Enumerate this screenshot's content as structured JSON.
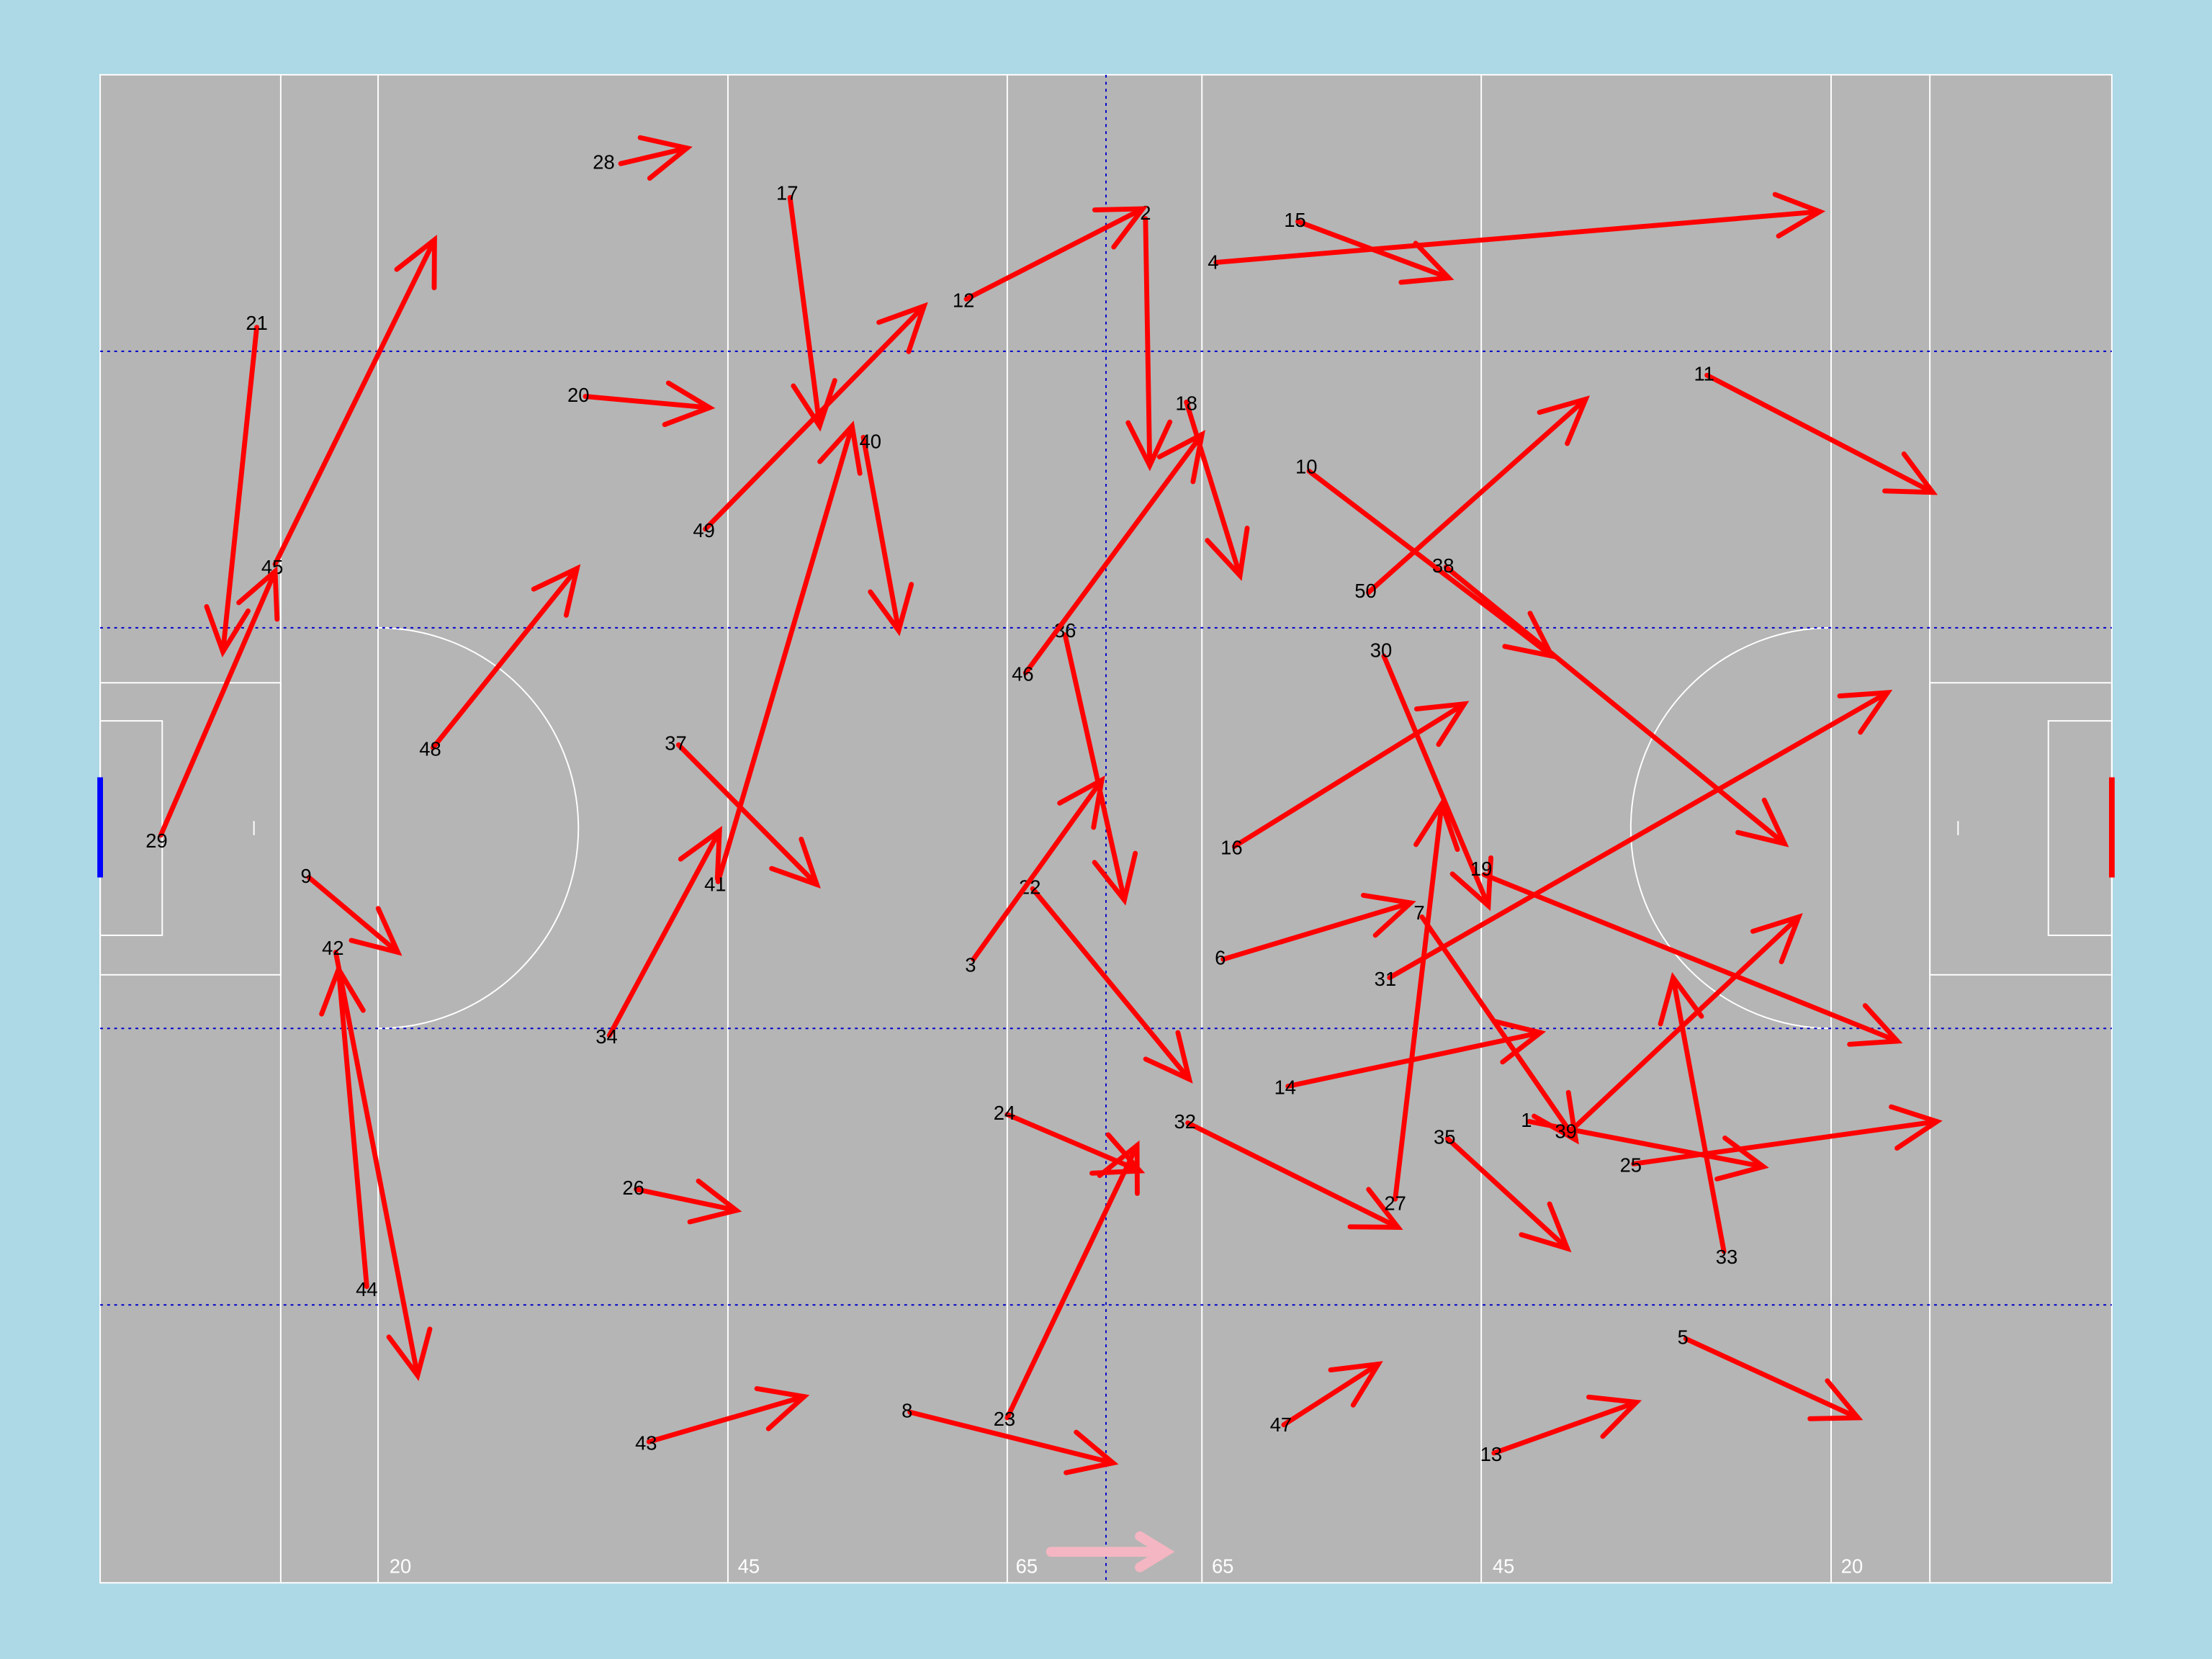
{
  "pitch": {
    "distance_labels": [
      "20",
      "45",
      "65",
      "65",
      "45",
      "20"
    ]
  },
  "passes": [
    {
      "label": "28"
    },
    {
      "label": "17"
    },
    {
      "label": "2"
    },
    {
      "label": "12"
    },
    {
      "label": "15"
    },
    {
      "label": "4"
    },
    {
      "label": "21"
    },
    {
      "label": "20"
    },
    {
      "label": "49"
    },
    {
      "label": "40"
    },
    {
      "label": "18"
    },
    {
      "label": "11"
    },
    {
      "label": "10"
    },
    {
      "label": "50"
    },
    {
      "label": "38"
    },
    {
      "label": "45"
    },
    {
      "label": "29"
    },
    {
      "label": "36"
    },
    {
      "label": "46"
    },
    {
      "label": "30"
    },
    {
      "label": "48"
    },
    {
      "label": "37"
    },
    {
      "label": "41"
    },
    {
      "label": "16"
    },
    {
      "label": "9"
    },
    {
      "label": "22"
    },
    {
      "label": "19"
    },
    {
      "label": "42"
    },
    {
      "label": "3"
    },
    {
      "label": "6"
    },
    {
      "label": "7"
    },
    {
      "label": "31"
    },
    {
      "label": "34"
    },
    {
      "label": "14"
    },
    {
      "label": "1"
    },
    {
      "label": "39"
    },
    {
      "label": "24"
    },
    {
      "label": "32"
    },
    {
      "label": "35"
    },
    {
      "label": "25"
    },
    {
      "label": "27"
    },
    {
      "label": "26"
    },
    {
      "label": "33"
    },
    {
      "label": "44"
    },
    {
      "label": "5"
    },
    {
      "label": "8"
    },
    {
      "label": "23"
    },
    {
      "label": "43"
    },
    {
      "label": "47"
    },
    {
      "label": "13"
    }
  ]
}
